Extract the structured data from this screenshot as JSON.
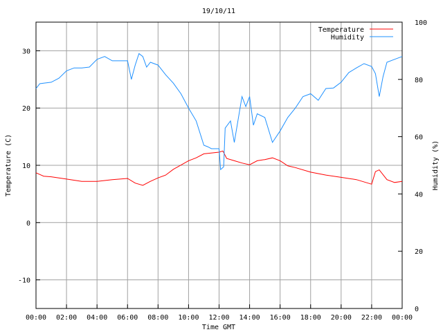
{
  "chart_data": {
    "type": "line",
    "title": "19/10/11",
    "xlabel": "Time GMT",
    "ylabel": "Temperature (C)",
    "y2label": "Humidity (%)",
    "xlim": [
      0,
      24
    ],
    "ylim": [
      -15,
      35
    ],
    "y2lim": [
      0,
      100
    ],
    "xticks": [
      0,
      2,
      4,
      6,
      8,
      10,
      12,
      14,
      16,
      18,
      20,
      22,
      24
    ],
    "xtick_labels": [
      "00:00",
      "02:00",
      "04:00",
      "06:00",
      "08:00",
      "10:00",
      "12:00",
      "14:00",
      "16:00",
      "18:00",
      "20:00",
      "22:00",
      "00:00"
    ],
    "yticks": [
      30,
      20,
      10,
      0,
      -10
    ],
    "ytick_labels": [
      "30",
      "20",
      "10",
      "0",
      "-10"
    ],
    "y2ticks": [
      100,
      80,
      60,
      40,
      20,
      0
    ],
    "y2tick_labels": [
      "100",
      "80",
      "60",
      "40",
      "20",
      "0"
    ],
    "grid": true,
    "legend_position": "top-right",
    "series": [
      {
        "name": "Temperature",
        "axis": "left",
        "color": "#ff0000",
        "x": [
          0,
          0.5,
          1,
          2,
          3,
          4,
          5,
          6,
          6.5,
          7,
          7.5,
          8,
          8.5,
          9,
          10,
          10.5,
          11,
          12,
          12.25,
          12.5,
          13,
          13.5,
          14,
          14.5,
          15,
          15.5,
          16,
          16.5,
          17,
          18,
          19,
          20,
          21,
          22,
          22.25,
          22.5,
          23,
          23.5,
          24
        ],
        "y": [
          8.7,
          8.1,
          8,
          7.6,
          7.2,
          7.2,
          7.5,
          7.7,
          6.9,
          6.5,
          7.2,
          7.8,
          8.3,
          9.3,
          10.8,
          11.3,
          12,
          12.3,
          12.5,
          11.2,
          10.8,
          10.4,
          10.1,
          10.8,
          11,
          11.3,
          10.8,
          9.9,
          9.6,
          8.8,
          8.3,
          7.9,
          7.5,
          6.7,
          8.9,
          9.2,
          7.5,
          7,
          7.2
        ]
      },
      {
        "name": "Humidity",
        "axis": "right",
        "color": "#1e90ff",
        "x": [
          0,
          0.25,
          0.5,
          1,
          1.5,
          2,
          2.5,
          3,
          3.5,
          4,
          4.5,
          5,
          5.5,
          6,
          6.25,
          6.5,
          6.75,
          7,
          7.25,
          7.5,
          8,
          8.5,
          9,
          9.5,
          10,
          10.5,
          11,
          11.25,
          11.5,
          12,
          12.1,
          12.3,
          12.4,
          12.75,
          13,
          13.5,
          13.75,
          14,
          14.25,
          14.5,
          15,
          15.5,
          16,
          16.5,
          17,
          17.5,
          18,
          18.5,
          19,
          19.5,
          20,
          20.5,
          21,
          21.5,
          22,
          22.25,
          22.5,
          22.75,
          23,
          23.5,
          24
        ],
        "y": [
          76.8,
          78.5,
          78.7,
          79,
          80.4,
          83,
          84,
          84,
          84.3,
          87,
          88,
          86.5,
          86.5,
          86.5,
          80,
          85,
          89,
          88,
          84.3,
          86,
          85,
          81.6,
          78.7,
          75,
          70,
          65.5,
          57,
          56.5,
          55.8,
          55.8,
          48.5,
          49.5,
          63,
          65.5,
          58,
          74,
          70.5,
          74,
          64,
          68,
          66.7,
          58,
          62,
          66.7,
          70,
          74,
          75,
          72.7,
          76.8,
          77,
          79,
          82.4,
          84,
          85.5,
          84.5,
          82,
          74,
          81,
          86,
          87,
          88
        ]
      }
    ]
  }
}
